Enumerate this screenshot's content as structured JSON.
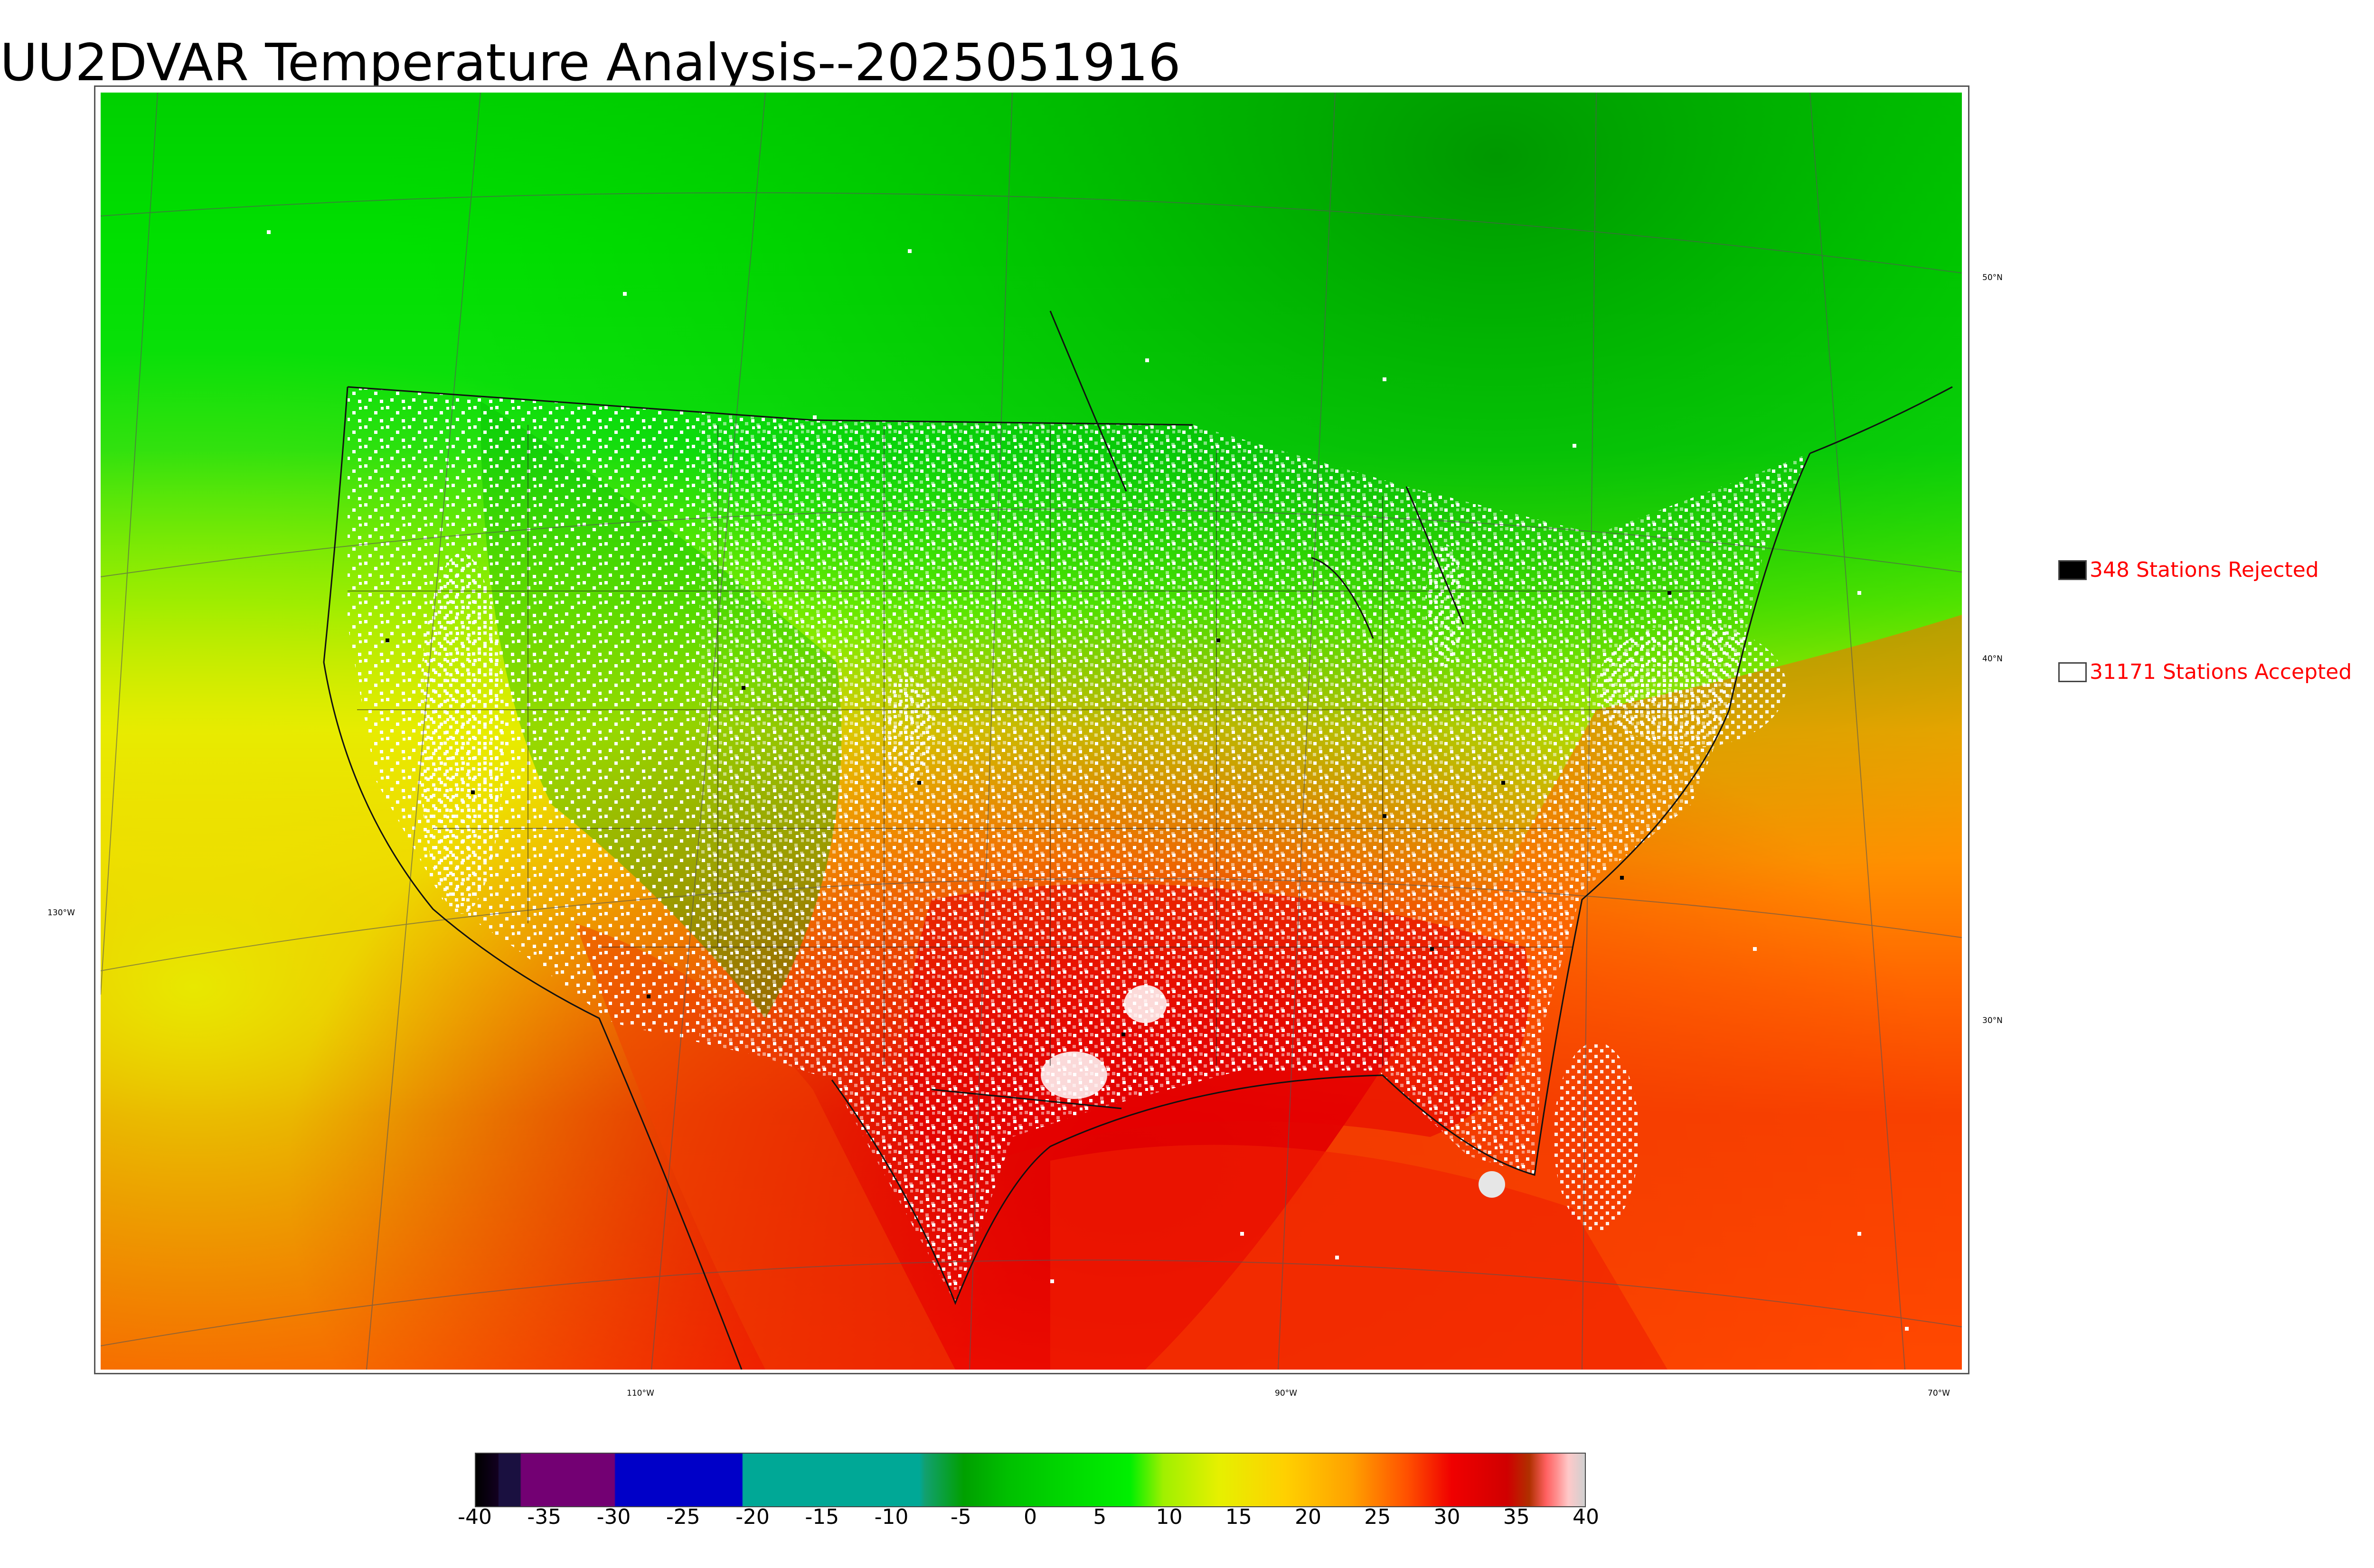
{
  "title": "UU2DVAR Temperature Analysis--2025051916",
  "legend": {
    "rejected": {
      "label": "348 Stations Rejected",
      "color": "#000000"
    },
    "accepted": {
      "label": "31171 Stations Accepted",
      "color": "#ffffff"
    },
    "text_color": "#ff0000"
  },
  "map": {
    "region": "CONUS and surroundings",
    "lat_labels": [
      "50°N",
      "40°N",
      "30°N"
    ],
    "lon_labels": [
      "130°W",
      "110°W",
      "90°W",
      "70°W"
    ],
    "station_colors": {
      "accepted": "#ffffff",
      "rejected": "#000000"
    }
  },
  "colorbar": {
    "ticks": [
      "-40",
      "-35",
      "-30",
      "-25",
      "-20",
      "-15",
      "-10",
      "-5",
      "0",
      "5",
      "10",
      "15",
      "20",
      "25",
      "30",
      "35",
      "40"
    ],
    "range": [
      -40,
      40
    ],
    "palette": {
      "very_cold": "#000000",
      "purple": "#730073",
      "blue": "#0000c8",
      "teal": "#00a896",
      "green": "#00c000",
      "yellow": "#e6f000",
      "orange": "#ffa000",
      "red": "#f00000",
      "pink": "#ffc8c8"
    }
  }
}
